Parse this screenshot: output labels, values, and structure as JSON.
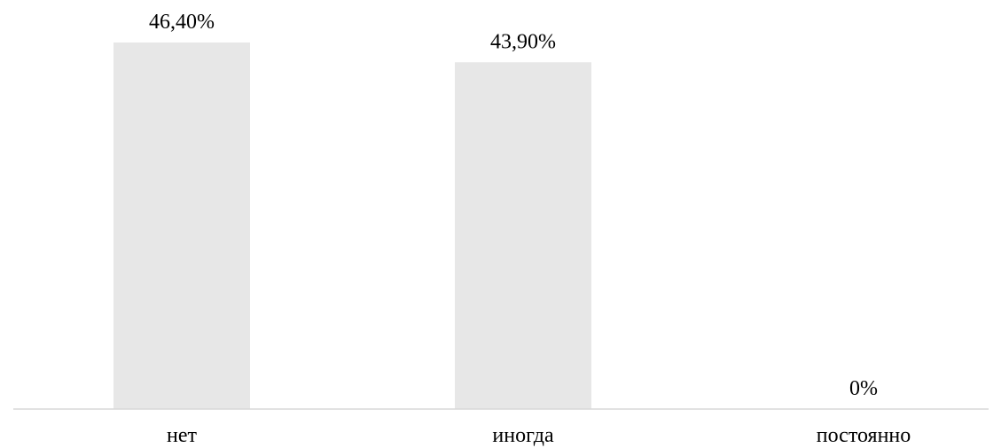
{
  "chart_data": {
    "type": "bar",
    "categories": [
      "нет",
      "иногда",
      "постоянно"
    ],
    "values": [
      46.4,
      43.9,
      0
    ],
    "data_labels": [
      "46,40%",
      "43,90%",
      "0%"
    ],
    "ylim": [
      0,
      46.4
    ],
    "grid": false,
    "legend": "none",
    "colors": {
      "bar": "#e7e7e7",
      "baseline": "#d9d9d9",
      "text": "#000000"
    }
  }
}
